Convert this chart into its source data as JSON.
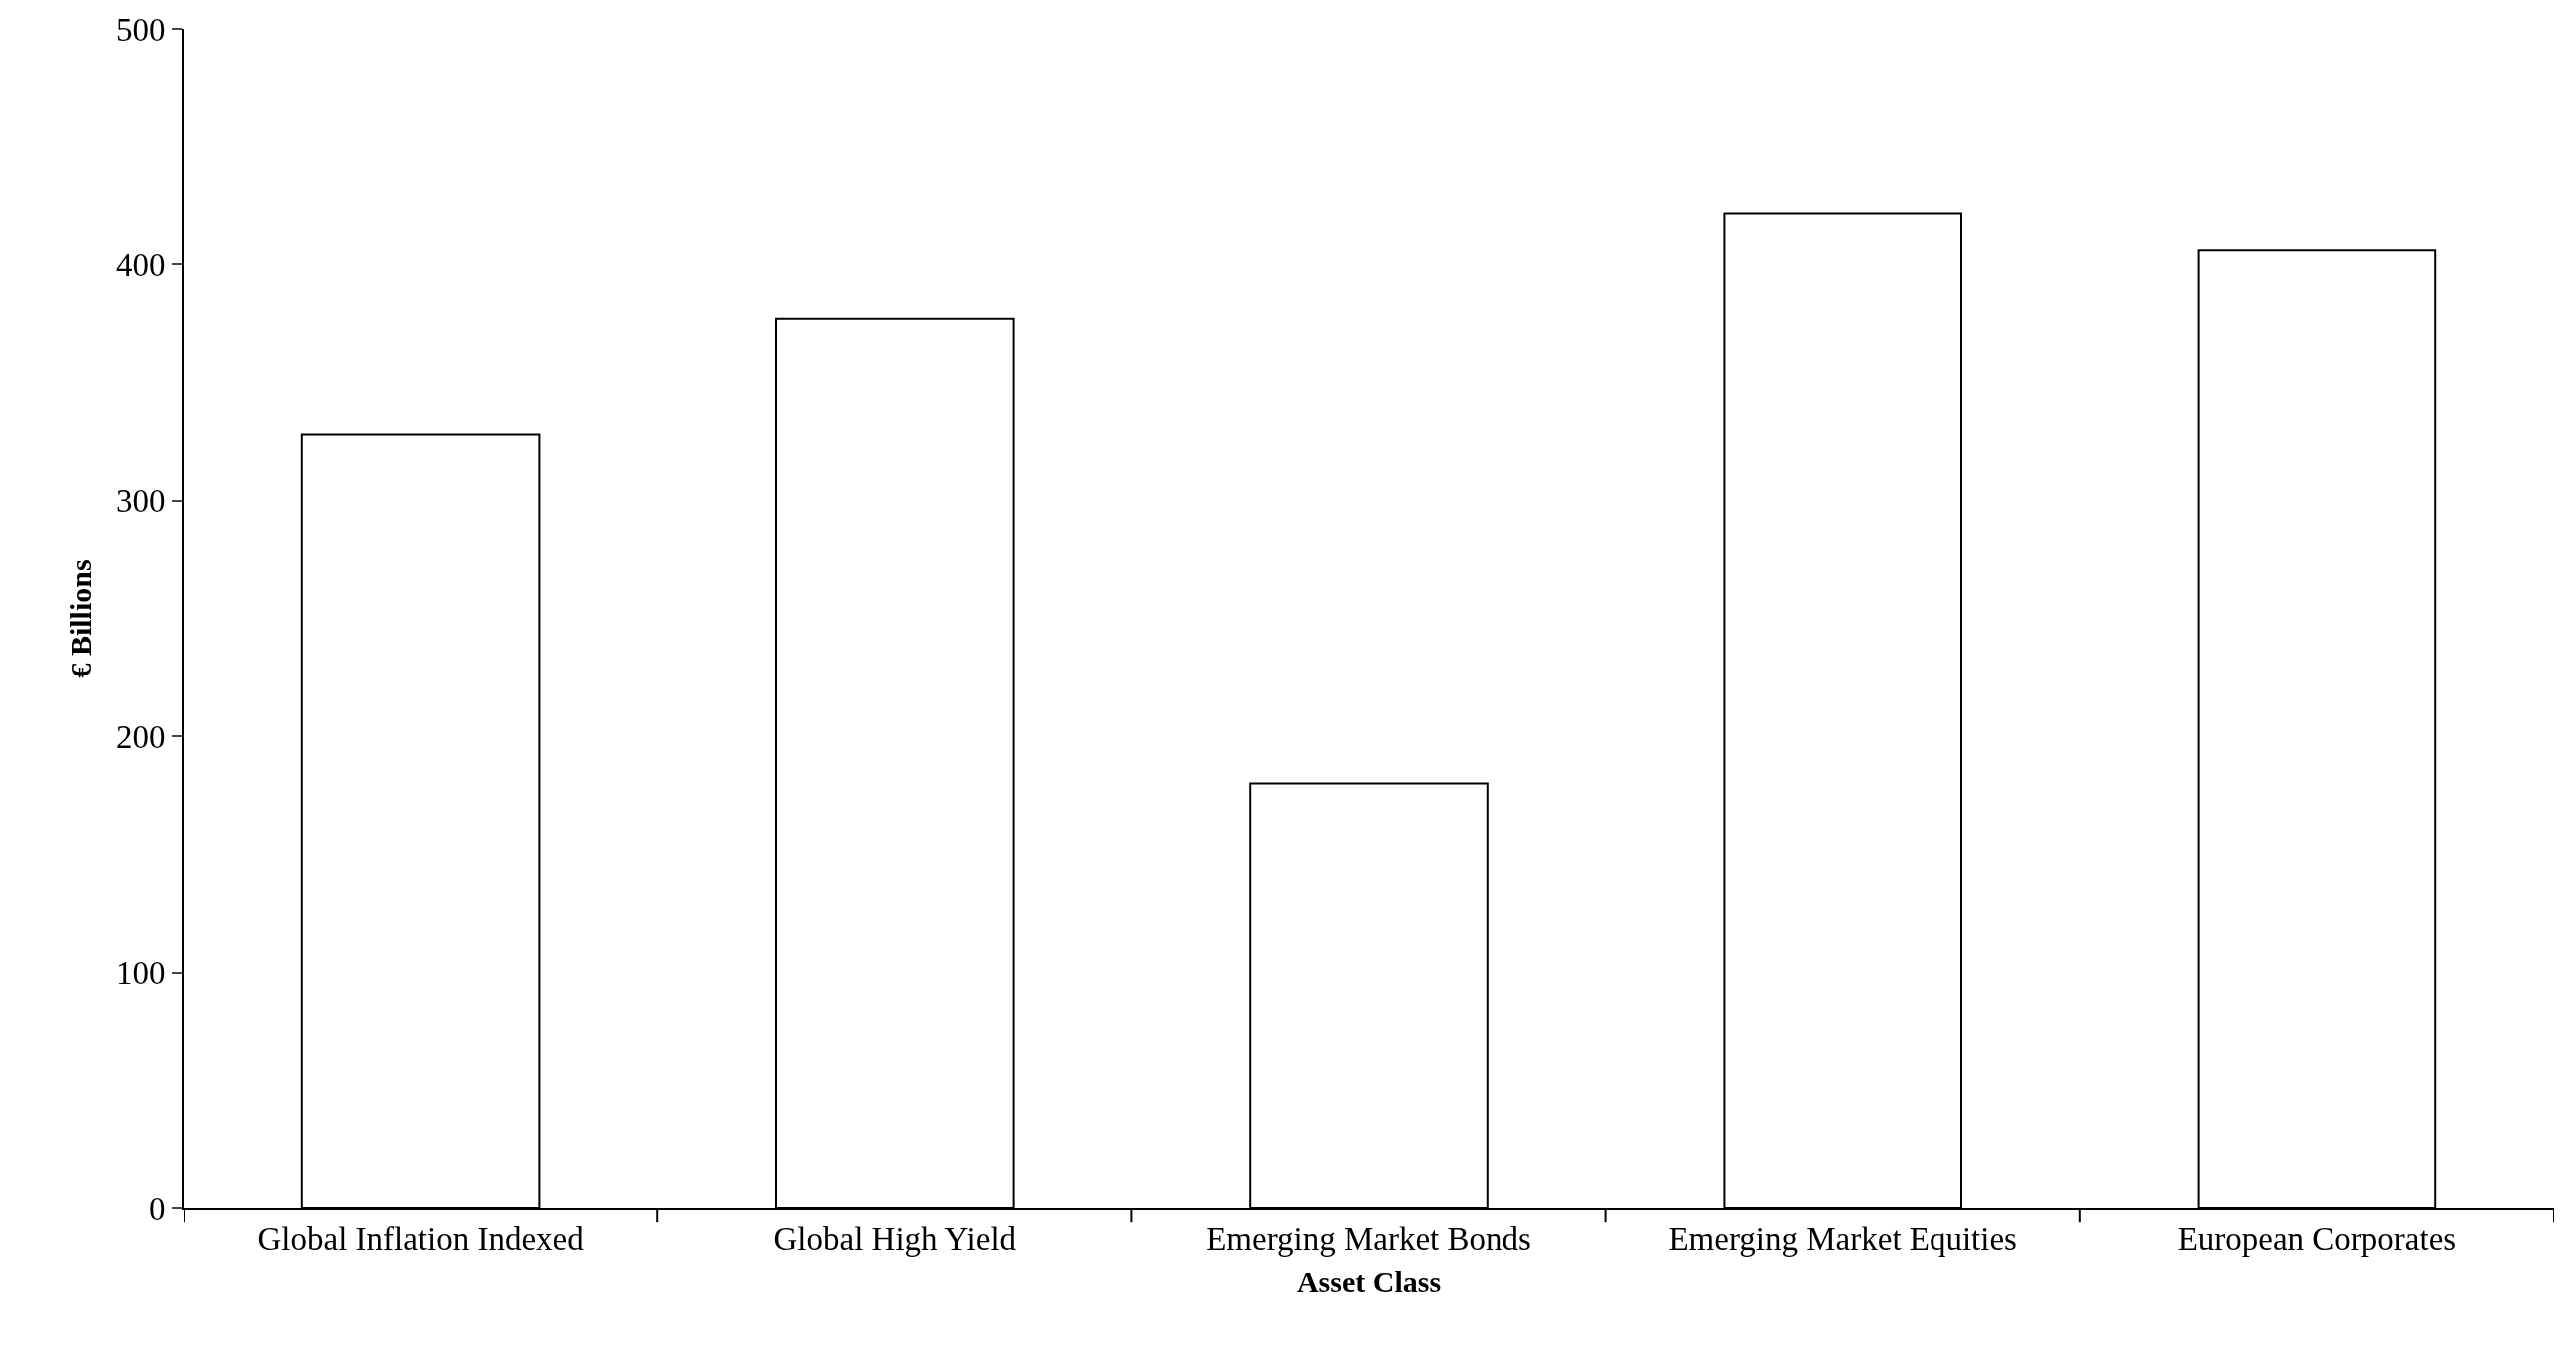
{
  "chart_data": {
    "type": "bar",
    "xlabel": "Asset Class",
    "ylabel": "€ Billions",
    "categories": [
      "Global Inflation Indexed",
      "Global High Yield",
      "Emerging Market Bonds",
      "Emerging Market Equities",
      "European Corporates"
    ],
    "values": [
      328,
      377,
      180,
      422,
      406
    ],
    "color": "#ffffff",
    "ylim": [
      0,
      500
    ],
    "yticks": [
      0,
      100,
      200,
      300,
      400,
      500
    ],
    "grid": false
  }
}
